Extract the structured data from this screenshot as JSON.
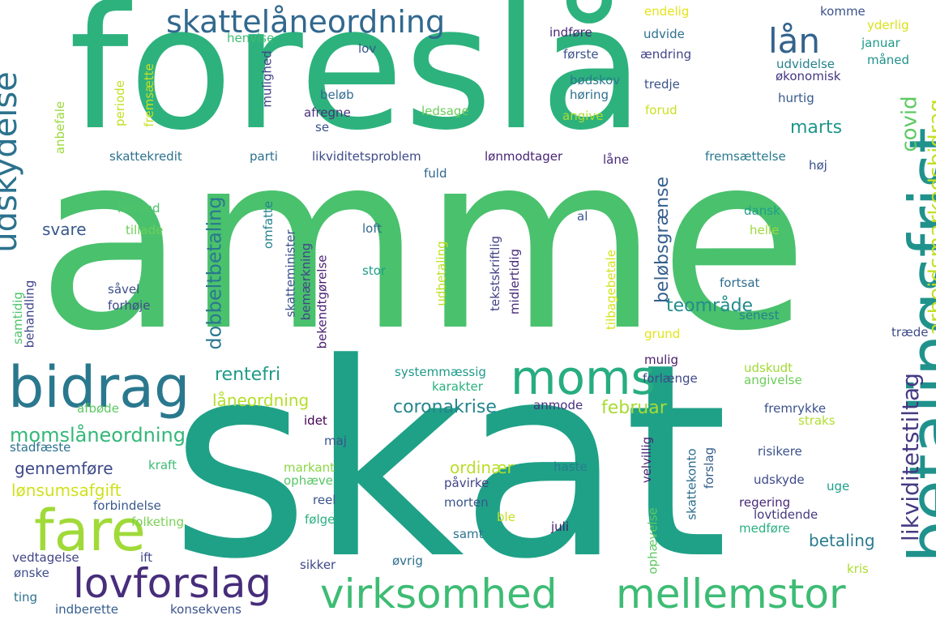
{
  "wordcloud": {
    "words": [
      {
        "id": "amme",
        "text": "amme",
        "color": "#4ac16d"
      },
      {
        "id": "skat",
        "text": "skat",
        "color": "#1fa187"
      },
      {
        "id": "foreslaa",
        "text": "foreslå",
        "color": "#2db27d"
      },
      {
        "id": "betalingsfrist",
        "text": "betalingsfrist",
        "color": "#20928c"
      },
      {
        "id": "bidrag",
        "text": "bidrag",
        "color": "#2a788e"
      },
      {
        "id": "moms",
        "text": "moms",
        "color": "#27ad81"
      },
      {
        "id": "fare",
        "text": "fare",
        "color": "#a0da39"
      },
      {
        "id": "lovforslag",
        "text": "lovforslag",
        "color": "#472d7b"
      },
      {
        "id": "virksomhed",
        "text": "virksomhed",
        "color": "#3dbc74"
      },
      {
        "id": "mellemstor",
        "text": "mellemstor",
        "color": "#3dbc74"
      },
      {
        "id": "skattelaaneordning",
        "text": "skattelåneordning",
        "color": "#31688e"
      },
      {
        "id": "udskydelse",
        "text": "udskydelse",
        "color": "#2c728e"
      },
      {
        "id": "laan",
        "text": "lån",
        "color": "#33638d"
      },
      {
        "id": "arbejdsmarkedsbidrag",
        "text": "arbejdsmarkedsbidrag",
        "color": "#c2df23"
      },
      {
        "id": "covid",
        "text": "covid",
        "color": "#5ec962"
      },
      {
        "id": "likviditetstiltag",
        "text": "likviditetstiltag",
        "color": "#443a83"
      },
      {
        "id": "dobbeltbetaling",
        "text": "dobbeltbetaling",
        "color": "#2a788e"
      },
      {
        "id": "beloebsgraense",
        "text": "beløbsgrænse",
        "color": "#355f8d"
      },
      {
        "id": "coronakrise",
        "text": "coronakrise",
        "color": "#25858e"
      },
      {
        "id": "momslaaneordning",
        "text": "momslåneordning",
        "color": "#35b779"
      },
      {
        "id": "marts",
        "text": "marts",
        "color": "#1f968b"
      },
      {
        "id": "teomraade",
        "text": "teområde",
        "color": "#228c8d"
      },
      {
        "id": "rentefri",
        "text": "rentefri",
        "color": "#1e9c89"
      },
      {
        "id": "laaneordning",
        "text": "låneordning",
        "color": "#b5de2b"
      },
      {
        "id": "februar",
        "text": "februar",
        "color": "#a8db34"
      },
      {
        "id": "svare",
        "text": "svare",
        "color": "#38588c"
      },
      {
        "id": "gennemfoere",
        "text": "gennemføre",
        "color": "#3e4a89"
      },
      {
        "id": "loensumsafgift",
        "text": "lønsumsafgift",
        "color": "#d0e11c"
      },
      {
        "id": "ordinaer",
        "text": "ordinær",
        "color": "#b8de29"
      },
      {
        "id": "betaling",
        "text": "betaling",
        "color": "#297b8e"
      },
      {
        "id": "endelig",
        "text": "endelig",
        "color": "#e5e419"
      },
      {
        "id": "komme",
        "text": "komme",
        "color": "#3b528b"
      },
      {
        "id": "yderlig",
        "text": "yderlig",
        "color": "#d8e219"
      },
      {
        "id": "indfoere",
        "text": "indføre",
        "color": "#482878"
      },
      {
        "id": "udvide",
        "text": "udvide",
        "color": "#2e6f8e"
      },
      {
        "id": "januar",
        "text": "januar",
        "color": "#1f9a8a"
      },
      {
        "id": "henvise",
        "text": "henvise",
        "color": "#3fbc73"
      },
      {
        "id": "lov",
        "text": "lov",
        "color": "#39568c"
      },
      {
        "id": "foerste",
        "text": "første",
        "color": "#3b528b"
      },
      {
        "id": "aendring",
        "text": "ændring",
        "color": "#414487"
      },
      {
        "id": "maaned",
        "text": "måned",
        "color": "#21918c"
      },
      {
        "id": "udvidelse",
        "text": "udvidelse",
        "color": "#26818e"
      },
      {
        "id": "oekonomisk",
        "text": "økonomisk",
        "color": "#453781"
      },
      {
        "id": "boedskov",
        "text": "bødskov",
        "color": "#2a788e"
      },
      {
        "id": "hoering",
        "text": "høring",
        "color": "#2d708e"
      },
      {
        "id": "tredje",
        "text": "tredje",
        "color": "#3b528b"
      },
      {
        "id": "hurtig",
        "text": "hurtig",
        "color": "#38598c"
      },
      {
        "id": "beloeb",
        "text": "beløb",
        "color": "#2f6c8e"
      },
      {
        "id": "afregne",
        "text": "afregne",
        "color": "#46327e"
      },
      {
        "id": "ledsage",
        "text": "ledsage",
        "color": "#6ccd5a"
      },
      {
        "id": "angive",
        "text": "angive",
        "color": "#addc30"
      },
      {
        "id": "forud",
        "text": "forud",
        "color": "#cae11f"
      },
      {
        "id": "se",
        "text": "se",
        "color": "#3b528b"
      },
      {
        "id": "mulighed",
        "text": "mulighed",
        "color": "#414487"
      },
      {
        "id": "periode",
        "text": "periode",
        "color": "#c2df23"
      },
      {
        "id": "fremsaette",
        "text": "fremsætte",
        "color": "#c5e021"
      },
      {
        "id": "anbefale",
        "text": "anbefale",
        "color": "#9bd93c"
      },
      {
        "id": "skattekredit",
        "text": "skattekredit",
        "color": "#2d708e"
      },
      {
        "id": "parti",
        "text": "parti",
        "color": "#2d708e"
      },
      {
        "id": "likviditetsproblem",
        "text": "likviditetsproblem",
        "color": "#3e4989"
      },
      {
        "id": "loenmodtager",
        "text": "lønmodtager",
        "color": "#482576"
      },
      {
        "id": "fremsaettelse",
        "text": "fremsættelse",
        "color": "#297a8e"
      },
      {
        "id": "laane",
        "text": "låne",
        "color": "#472c7a"
      },
      {
        "id": "fuld",
        "text": "fuld",
        "color": "#31688e"
      },
      {
        "id": "hoej",
        "text": "høj",
        "color": "#3c4f8a"
      },
      {
        "id": "herved",
        "text": "herved",
        "color": "#50c46a"
      },
      {
        "id": "tillade",
        "text": "tillade",
        "color": "#6ece58"
      },
      {
        "id": "dansk",
        "text": "dansk",
        "color": "#1f9f88"
      },
      {
        "id": "loft",
        "text": "loft",
        "color": "#31688e"
      },
      {
        "id": "al",
        "text": "al",
        "color": "#3a548c"
      },
      {
        "id": "helle",
        "text": "helle",
        "color": "#9dd93b"
      },
      {
        "id": "skatteminister",
        "text": "skatteminister",
        "color": "#3c508b"
      },
      {
        "id": "omfatte",
        "text": "omfatte",
        "color": "#26828e"
      },
      {
        "id": "bemaerkning",
        "text": "bemærkning",
        "color": "#404688"
      },
      {
        "id": "bekendtgoerelse",
        "text": "bekendtgørelse",
        "color": "#481f70"
      },
      {
        "id": "udbetaling",
        "text": "udbetaling",
        "color": "#c0df25"
      },
      {
        "id": "tekstskriftlig",
        "text": "tekstskriftlig",
        "color": "#424086"
      },
      {
        "id": "midlertidig",
        "text": "midlertidig",
        "color": "#472a7a"
      },
      {
        "id": "tilbagebetale",
        "text": "tilbagebetale",
        "color": "#d5e21a"
      },
      {
        "id": "fortsat",
        "text": "fortsat",
        "color": "#2f6c8e"
      },
      {
        "id": "senest",
        "text": "senest",
        "color": "#26818e"
      },
      {
        "id": "saavel",
        "text": "såvel",
        "color": "#3c4f8a"
      },
      {
        "id": "forhoeje",
        "text": "forhøje",
        "color": "#3e4989"
      },
      {
        "id": "stor",
        "text": "stor",
        "color": "#1f9e89"
      },
      {
        "id": "samtidig",
        "text": "samtidig",
        "color": "#4ec36b"
      },
      {
        "id": "behandling",
        "text": "behandling",
        "color": "#404588"
      },
      {
        "id": "grund",
        "text": "grund",
        "color": "#e2e418"
      },
      {
        "id": "traede",
        "text": "træde",
        "color": "#3e4c8a"
      },
      {
        "id": "mulig",
        "text": "mulig",
        "color": "#481b6d"
      },
      {
        "id": "udskudt",
        "text": "udskudt",
        "color": "#a2da37"
      },
      {
        "id": "systemmaessig",
        "text": "systemmæssig",
        "color": "#1f9a8a"
      },
      {
        "id": "karakter",
        "text": "karakter",
        "color": "#2ab07f"
      },
      {
        "id": "forlaenge",
        "text": "forlænge",
        "color": "#3e4989"
      },
      {
        "id": "angivelse",
        "text": "angivelse",
        "color": "#6ccd5a"
      },
      {
        "id": "afboede",
        "text": "afbøde",
        "color": "#5cc863"
      },
      {
        "id": "anmode",
        "text": "anmode",
        "color": "#46307e"
      },
      {
        "id": "fremrykke",
        "text": "fremrykke",
        "color": "#3b528b"
      },
      {
        "id": "idet",
        "text": "idet",
        "color": "#440154"
      },
      {
        "id": "straks",
        "text": "straks",
        "color": "#b0dd2f"
      },
      {
        "id": "stadfaeste",
        "text": "stadfæste",
        "color": "#2c728e"
      },
      {
        "id": "maj",
        "text": "maj",
        "color": "#3b528b"
      },
      {
        "id": "risikere",
        "text": "risikere",
        "color": "#3b528b"
      },
      {
        "id": "kraft",
        "text": "kraft",
        "color": "#3dbc74"
      },
      {
        "id": "haste",
        "text": "haste",
        "color": "#287d8e"
      },
      {
        "id": "markant",
        "text": "markant",
        "color": "#8bd646"
      },
      {
        "id": "ophaeve",
        "text": "ophæve",
        "color": "#57c766"
      },
      {
        "id": "velvillig",
        "text": "velvillig",
        "color": "#482173"
      },
      {
        "id": "udskyde",
        "text": "udskyde",
        "color": "#3e4a89"
      },
      {
        "id": "paavirke",
        "text": "påvirke",
        "color": "#404588"
      },
      {
        "id": "skattekonto",
        "text": "skattekonto",
        "color": "#2e6e8e"
      },
      {
        "id": "forslag",
        "text": "forslag",
        "color": "#355e8d"
      },
      {
        "id": "reel",
        "text": "reel",
        "color": "#3a548c"
      },
      {
        "id": "morten",
        "text": "morten",
        "color": "#3a548c"
      },
      {
        "id": "ble",
        "text": "ble",
        "color": "#c8e020"
      },
      {
        "id": "regering",
        "text": "regering",
        "color": "#482979"
      },
      {
        "id": "uge",
        "text": "uge",
        "color": "#1e9c89"
      },
      {
        "id": "forbindelse",
        "text": "forbindelse",
        "color": "#38598c"
      },
      {
        "id": "loevtidende",
        "text": "lovtidende",
        "color": "#453882"
      },
      {
        "id": "folketing",
        "text": "folketing",
        "color": "#7ad151"
      },
      {
        "id": "juli",
        "text": "juli",
        "color": "#481a6c"
      },
      {
        "id": "medfoere",
        "text": "medføre",
        "color": "#2ab07f"
      },
      {
        "id": "foelge",
        "text": "følge",
        "color": "#2ab07f"
      },
      {
        "id": "samt",
        "text": "samt",
        "color": "#2c738e"
      },
      {
        "id": "vedtagelse",
        "text": "vedtagelse",
        "color": "#414487"
      },
      {
        "id": "ift",
        "text": "ift",
        "color": "#404688"
      },
      {
        "id": "oensk",
        "text": "ønske",
        "color": "#3d4d8a"
      },
      {
        "id": "sikker",
        "text": "sikker",
        "color": "#3e4a89"
      },
      {
        "id": "oevrig",
        "text": "øvrig",
        "color": "#2e6f8e"
      },
      {
        "id": "ophaevelse",
        "text": "ophævelse",
        "color": "#5ec962"
      },
      {
        "id": "kris",
        "text": "kris",
        "color": "#addc30"
      },
      {
        "id": "ting",
        "text": "ting",
        "color": "#2c728e"
      },
      {
        "id": "indberette",
        "text": "indberette",
        "color": "#355f8d"
      },
      {
        "id": "konsekvens",
        "text": "konsekvens",
        "color": "#3b528b"
      }
    ]
  }
}
